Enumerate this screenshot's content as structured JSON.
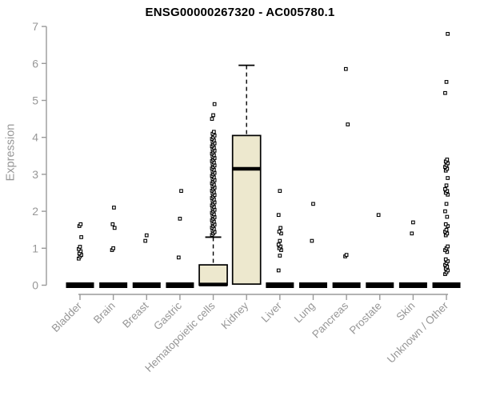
{
  "title": "ENSG00000267320 - AC005780.1",
  "y_axis": {
    "label": "Expression"
  },
  "colors": {
    "box_fill": "#EDE8CE",
    "box_stroke": "#000000",
    "median": "#000000",
    "axis": "#9A9A9A",
    "tick_label": "#979797",
    "title": "#000000",
    "outlier_fill": "#FFFFFF",
    "outlier_stroke": "#000000",
    "background": "#FFFFFF"
  },
  "chart_data": {
    "type": "boxplot",
    "title": "ENSG00000267320 - AC005780.1",
    "xlabel": "",
    "ylabel": "Expression",
    "ylim": [
      0,
      7
    ],
    "y_ticks": [
      0,
      1,
      2,
      3,
      4,
      5,
      6,
      7
    ],
    "grid": false,
    "legend": false,
    "categories": [
      "Bladder",
      "Brain",
      "Breast",
      "Gastric",
      "Hematopoietic cells",
      "Kidney",
      "Liver",
      "Lung",
      "Pancreas",
      "Prostate",
      "Skin",
      "Unknown / Other"
    ],
    "series": [
      {
        "name": "Bladder",
        "q1": 0,
        "median": 0,
        "q3": 0,
        "whisker_low": 0,
        "whisker_high": 0,
        "outliers": [
          0.72,
          0.78,
          0.82,
          0.86,
          0.92,
          0.98,
          1.04,
          1.3,
          1.6,
          1.65
        ]
      },
      {
        "name": "Brain",
        "q1": 0,
        "median": 0,
        "q3": 0,
        "whisker_low": 0,
        "whisker_high": 0,
        "outliers": [
          0.95,
          1.0,
          1.55,
          1.65,
          2.1
        ]
      },
      {
        "name": "Breast",
        "q1": 0,
        "median": 0,
        "q3": 0,
        "whisker_low": 0,
        "whisker_high": 0,
        "outliers": [
          1.2,
          1.35
        ]
      },
      {
        "name": "Gastric",
        "q1": 0,
        "median": 0,
        "q3": 0,
        "whisker_low": 0,
        "whisker_high": 0,
        "outliers": [
          0.75,
          1.8,
          2.55
        ]
      },
      {
        "name": "Hematopoietic cells",
        "q1": 0,
        "median": 0.02,
        "q3": 0.55,
        "whisker_low": 0,
        "whisker_high": 1.3,
        "outliers": [
          1.36,
          1.4,
          1.44,
          1.48,
          1.52,
          1.56,
          1.6,
          1.64,
          1.68,
          1.72,
          1.76,
          1.8,
          1.84,
          1.88,
          1.92,
          1.96,
          2.0,
          2.04,
          2.08,
          2.12,
          2.16,
          2.2,
          2.24,
          2.28,
          2.32,
          2.36,
          2.4,
          2.44,
          2.48,
          2.52,
          2.56,
          2.6,
          2.64,
          2.68,
          2.72,
          2.76,
          2.8,
          2.84,
          2.88,
          2.92,
          2.96,
          3.0,
          3.04,
          3.08,
          3.12,
          3.16,
          3.2,
          3.24,
          3.28,
          3.32,
          3.36,
          3.4,
          3.44,
          3.48,
          3.52,
          3.56,
          3.6,
          3.64,
          3.68,
          3.72,
          3.76,
          3.8,
          3.84,
          3.88,
          3.92,
          3.96,
          4.0,
          4.05,
          4.1,
          4.15,
          4.5,
          4.6,
          4.9
        ]
      },
      {
        "name": "Kidney",
        "q1": 0.03,
        "median": 3.15,
        "q3": 4.05,
        "whisker_low": 0.03,
        "whisker_high": 5.95,
        "outliers": []
      },
      {
        "name": "Liver",
        "q1": 0,
        "median": 0,
        "q3": 0,
        "whisker_low": 0,
        "whisker_high": 0,
        "outliers": [
          0.4,
          0.8,
          0.95,
          1.0,
          1.05,
          1.1,
          1.2,
          1.4,
          1.45,
          1.55,
          1.9,
          2.55
        ]
      },
      {
        "name": "Lung",
        "q1": 0,
        "median": 0,
        "q3": 0,
        "whisker_low": 0,
        "whisker_high": 0,
        "outliers": [
          1.2,
          2.2
        ]
      },
      {
        "name": "Pancreas",
        "q1": 0,
        "median": 0,
        "q3": 0,
        "whisker_low": 0,
        "whisker_high": 0,
        "outliers": [
          0.78,
          0.82,
          4.35,
          5.85
        ]
      },
      {
        "name": "Prostate",
        "q1": 0,
        "median": 0,
        "q3": 0,
        "whisker_low": 0,
        "whisker_high": 0,
        "outliers": [
          1.9
        ]
      },
      {
        "name": "Skin",
        "q1": 0,
        "median": 0,
        "q3": 0,
        "whisker_low": 0,
        "whisker_high": 0,
        "outliers": [
          1.4,
          1.7
        ]
      },
      {
        "name": "Unknown / Other",
        "q1": 0,
        "median": 0,
        "q3": 0,
        "whisker_low": 0,
        "whisker_high": 0,
        "outliers": [
          0.3,
          0.35,
          0.4,
          0.45,
          0.5,
          0.55,
          0.6,
          0.65,
          0.7,
          0.9,
          0.95,
          1.0,
          1.05,
          1.35,
          1.4,
          1.45,
          1.5,
          1.6,
          1.65,
          1.85,
          2.0,
          2.2,
          2.45,
          2.5,
          2.55,
          2.6,
          2.7,
          2.9,
          3.1,
          3.15,
          3.2,
          3.25,
          3.3,
          3.35,
          3.4,
          5.2,
          5.5,
          6.8
        ]
      }
    ]
  }
}
